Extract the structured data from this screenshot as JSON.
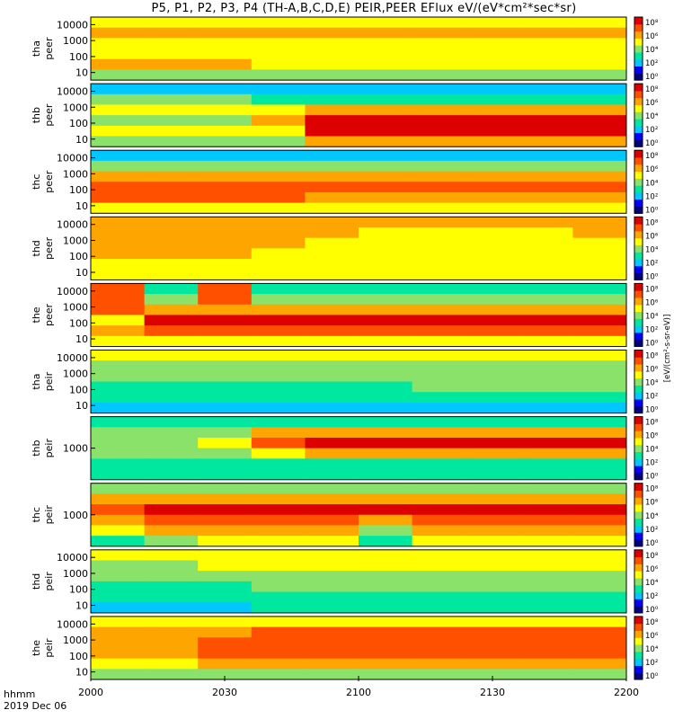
{
  "title": "P5, P1, P2, P3, P4 (TH-A,B,C,D,E) PEIR,PEER EFlux eV/(eV*cm²*sec*sr)",
  "time_footer": {
    "line1": "hhmm",
    "line2": "2019 Dec 06"
  },
  "colorbar_unit": "[eV/(cm²-s-sr-eV)]",
  "colors": {
    "background": "#ffffff",
    "axis": "#000000",
    "gap_band": "#ffffff"
  },
  "chart_data": {
    "type": "heatmap",
    "xlabel": "",
    "x_ticks": [
      "2000",
      "2030",
      "2100",
      "2130",
      "2200"
    ],
    "xlim": [
      "2000",
      "2200"
    ],
    "colormap": [
      "#000080",
      "#0000ff",
      "#00c8ff",
      "#00e8a0",
      "#8be26a",
      "#ffff00",
      "#ffa500",
      "#ff5000",
      "#dc0000"
    ],
    "panels": [
      {
        "name": "tha peer",
        "probe": "tha",
        "species": "peer",
        "y_scale": "log",
        "y_ticks": [
          "10000",
          "1000",
          "100",
          "10"
        ],
        "colorbar_ticks": [
          "10⁸",
          "10⁶",
          "10⁴",
          "10²",
          "10⁰"
        ],
        "levels": [
          [
            0.62,
            0.62,
            0.62,
            0.62,
            0.62,
            0.62,
            0.62,
            0.62,
            0.62,
            0.62
          ],
          [
            0.72,
            0.72,
            0.72,
            0.72,
            0.72,
            0.72,
            0.72,
            0.72,
            0.72,
            0.72
          ],
          [
            0.68,
            0.68,
            0.68,
            0.68,
            0.66,
            0.64,
            0.62,
            0.62,
            0.62,
            0.62
          ],
          [
            0.6,
            0.6,
            0.62,
            0.62,
            0.6,
            0.58,
            0.58,
            0.58,
            0.58,
            0.58
          ],
          [
            0.7,
            0.72,
            0.74,
            0.68,
            0.64,
            0.64,
            0.64,
            0.64,
            0.64,
            0.64
          ],
          [
            0.55,
            0.55,
            0.55,
            0.55,
            0.55,
            0.55,
            0.55,
            0.55,
            0.55,
            0.55
          ]
        ]
      },
      {
        "name": "thb peer",
        "probe": "thb",
        "species": "peer",
        "y_scale": "log",
        "y_ticks": [
          "10000",
          "1000",
          "100",
          "10"
        ],
        "colorbar_ticks": [
          "10⁸",
          "10⁶",
          "10⁴",
          "10²",
          "10⁰"
        ],
        "levels": [
          [
            0.3,
            0.3,
            0.3,
            0.3,
            0.3,
            0.3,
            0.3,
            0.3,
            0.3,
            0.3
          ],
          [
            0.45,
            0.45,
            0.45,
            0.42,
            0.38,
            0.38,
            0.38,
            0.38,
            0.38,
            0.38
          ],
          [
            0.6,
            0.6,
            0.58,
            0.62,
            0.7,
            0.7,
            0.7,
            0.7,
            0.7,
            0.7
          ],
          [
            0.55,
            0.55,
            0.55,
            0.8,
            0.95,
            0.95,
            0.95,
            0.95,
            0.95,
            0.95
          ],
          [
            0.58,
            0.58,
            0.58,
            0.68,
            0.95,
            0.95,
            0.95,
            0.95,
            0.95,
            0.95
          ],
          [
            0.5,
            0.5,
            0.5,
            0.55,
            0.8,
            0.8,
            0.8,
            0.8,
            0.8,
            0.8
          ]
        ]
      },
      {
        "name": "thc peer",
        "probe": "thc",
        "species": "peer",
        "y_scale": "log",
        "y_ticks": [
          "10000",
          "1000",
          "100",
          "10"
        ],
        "colorbar_ticks": [
          "10⁸",
          "10⁶",
          "10⁴",
          "10²",
          "10⁰"
        ],
        "levels": [
          [
            0.3,
            0.3,
            0.3,
            0.3,
            0.3,
            0.3,
            0.3,
            0.3,
            0.3,
            0.3
          ],
          [
            0.55,
            0.55,
            0.55,
            0.55,
            0.55,
            0.55,
            0.55,
            0.55,
            0.55,
            0.55
          ],
          [
            0.7,
            0.7,
            0.7,
            0.7,
            0.7,
            0.7,
            0.7,
            0.7,
            0.7,
            0.7
          ],
          [
            0.9,
            0.9,
            0.9,
            0.9,
            0.92,
            0.9,
            0.9,
            0.9,
            0.9,
            0.9
          ],
          [
            0.85,
            0.85,
            0.85,
            0.85,
            0.8,
            0.8,
            0.8,
            0.8,
            0.8,
            0.8
          ],
          [
            0.6,
            0.6,
            0.6,
            0.6,
            0.6,
            0.6,
            0.6,
            0.6,
            0.6,
            0.6
          ]
        ]
      },
      {
        "name": "thd peer",
        "probe": "thd",
        "species": "peer",
        "y_scale": "log",
        "y_ticks": [
          "10000",
          "1000",
          "100",
          "10"
        ],
        "colorbar_ticks": [
          "10⁸",
          "10⁶",
          "10⁴",
          "10²",
          "10⁰"
        ],
        "levels": [
          [
            0.7,
            0.7,
            0.7,
            0.7,
            0.7,
            0.7,
            0.7,
            0.7,
            0.7,
            0.7
          ],
          [
            0.8,
            0.8,
            0.78,
            0.74,
            0.7,
            0.68,
            0.66,
            0.66,
            0.68,
            0.7
          ],
          [
            0.78,
            0.78,
            0.74,
            0.7,
            0.66,
            0.62,
            0.6,
            0.6,
            0.64,
            0.68
          ],
          [
            0.72,
            0.72,
            0.7,
            0.66,
            0.62,
            0.6,
            0.6,
            0.6,
            0.62,
            0.66
          ],
          [
            0.66,
            0.66,
            0.64,
            0.62,
            0.6,
            0.6,
            0.6,
            0.6,
            0.6,
            0.62
          ],
          [
            0.58,
            0.58,
            0.58,
            0.58,
            0.58,
            0.58,
            0.58,
            0.58,
            0.58,
            0.58
          ]
        ]
      },
      {
        "name": "the peer",
        "probe": "the",
        "species": "peer",
        "y_scale": "log",
        "y_ticks": [
          "10000",
          "1000",
          "100",
          "10"
        ],
        "colorbar_ticks": [
          "10⁸",
          "10⁶",
          "10⁴",
          "10²",
          "10⁰"
        ],
        "levels": [
          [
            0.9,
            0.4,
            0.88,
            0.32,
            0.32,
            0.32,
            0.32,
            0.32,
            0.32,
            0.32
          ],
          [
            0.92,
            0.55,
            0.9,
            0.45,
            0.45,
            0.48,
            0.45,
            0.45,
            0.45,
            0.45
          ],
          [
            0.92,
            0.7,
            0.8,
            0.8,
            0.8,
            0.8,
            0.8,
            0.8,
            0.8,
            0.8
          ],
          [
            0.6,
            0.95,
            0.95,
            0.95,
            0.95,
            0.95,
            0.95,
            0.95,
            0.95,
            0.95
          ],
          [
            0.7,
            0.88,
            0.88,
            0.88,
            0.88,
            0.88,
            0.88,
            0.88,
            0.88,
            0.88
          ],
          [
            0.6,
            0.6,
            0.62,
            0.62,
            0.62,
            0.62,
            0.62,
            0.62,
            0.62,
            0.62
          ]
        ]
      },
      {
        "name": "tha peir",
        "probe": "tha",
        "species": "peir",
        "y_scale": "log",
        "y_ticks": [
          "10000",
          "1000",
          "100",
          "10"
        ],
        "colorbar_ticks": [
          "10⁸",
          "10⁶",
          "10⁴",
          "10²",
          "10⁰"
        ],
        "levels": [
          [
            0.6,
            0.6,
            0.6,
            0.6,
            0.6,
            0.6,
            0.6,
            0.6,
            0.6,
            0.6
          ],
          [
            0.55,
            0.55,
            0.55,
            0.55,
            0.55,
            0.55,
            0.55,
            0.55,
            0.55,
            0.55
          ],
          [
            0.48,
            0.48,
            0.48,
            0.48,
            0.48,
            0.48,
            0.5,
            0.5,
            0.5,
            0.5
          ],
          [
            0.42,
            0.42,
            0.42,
            0.42,
            0.42,
            0.42,
            0.44,
            0.44,
            0.44,
            0.44
          ],
          [
            0.36,
            0.36,
            0.36,
            0.36,
            0.36,
            0.36,
            0.36,
            0.36,
            0.36,
            0.36
          ],
          [
            0.3,
            0.3,
            0.3,
            0.3,
            0.3,
            0.3,
            0.3,
            0.3,
            0.3,
            0.3
          ]
        ]
      },
      {
        "name": "thb peir",
        "probe": "thb",
        "species": "peir",
        "y_scale": "log",
        "y_ticks": [
          "1000"
        ],
        "colorbar_ticks": [
          "10⁸",
          "10⁶",
          "10⁴",
          "10²",
          "10⁰"
        ],
        "levels": [
          [
            0.42,
            0.42,
            0.42,
            0.42,
            0.42,
            0.42,
            0.42,
            0.42,
            0.42,
            0.42
          ],
          [
            0.5,
            0.5,
            0.55,
            0.7,
            0.72,
            0.72,
            0.72,
            0.72,
            0.72,
            0.72
          ],
          [
            0.55,
            0.55,
            0.6,
            0.92,
            0.95,
            0.95,
            0.95,
            0.95,
            0.95,
            0.95
          ],
          [
            0.5,
            0.5,
            0.5,
            0.65,
            0.75,
            0.75,
            0.75,
            0.75,
            0.75,
            0.75
          ],
          [
            0.4,
            0.4,
            0.4,
            0.4,
            0.4,
            0.4,
            0.4,
            0.4,
            0.4,
            0.4
          ],
          [
            0.35,
            0.35,
            0.35,
            0.35,
            0.35,
            0.35,
            0.35,
            0.35,
            0.35,
            0.35
          ]
        ]
      },
      {
        "name": "thc peir",
        "probe": "thc",
        "species": "peir",
        "y_scale": "log",
        "y_ticks": [
          "1000"
        ],
        "colorbar_ticks": [
          "10⁸",
          "10⁶",
          "10⁴",
          "10²",
          "10⁰"
        ],
        "levels": [
          [
            0.5,
            0.5,
            0.55,
            0.55,
            0.55,
            0.55,
            0.55,
            0.55,
            0.55,
            0.55
          ],
          [
            0.72,
            0.78,
            0.8,
            0.8,
            0.8,
            0.78,
            0.8,
            0.8,
            0.8,
            0.8
          ],
          [
            0.88,
            0.95,
            0.95,
            0.95,
            0.95,
            0.95,
            0.95,
            0.95,
            0.95,
            0.95
          ],
          [
            0.8,
            0.92,
            0.92,
            0.92,
            0.92,
            0.7,
            0.92,
            0.92,
            0.92,
            0.92
          ],
          [
            0.6,
            0.75,
            0.78,
            0.78,
            0.78,
            0.45,
            0.78,
            0.78,
            0.78,
            0.78
          ],
          [
            0.42,
            0.55,
            0.6,
            0.6,
            0.6,
            0.4,
            0.6,
            0.6,
            0.6,
            0.6
          ]
        ]
      },
      {
        "name": "thd peir",
        "probe": "thd",
        "species": "peir",
        "y_scale": "log",
        "y_ticks": [
          "10000",
          "1000",
          "100",
          "10"
        ],
        "colorbar_ticks": [
          "10⁸",
          "10⁶",
          "10⁴",
          "10²",
          "10⁰"
        ],
        "levels": [
          [
            0.62,
            0.62,
            0.62,
            0.62,
            0.62,
            0.62,
            0.62,
            0.62,
            0.62,
            0.62
          ],
          [
            0.55,
            0.55,
            0.58,
            0.6,
            0.6,
            0.6,
            0.6,
            0.6,
            0.6,
            0.6
          ],
          [
            0.48,
            0.48,
            0.5,
            0.52,
            0.54,
            0.56,
            0.56,
            0.56,
            0.56,
            0.56
          ],
          [
            0.4,
            0.4,
            0.42,
            0.44,
            0.46,
            0.48,
            0.48,
            0.48,
            0.48,
            0.48
          ],
          [
            0.34,
            0.34,
            0.36,
            0.38,
            0.4,
            0.4,
            0.4,
            0.4,
            0.4,
            0.4
          ],
          [
            0.3,
            0.3,
            0.3,
            0.32,
            0.32,
            0.32,
            0.32,
            0.32,
            0.32,
            0.32
          ]
        ]
      },
      {
        "name": "the peir",
        "probe": "the",
        "species": "peir",
        "y_scale": "log",
        "y_ticks": [
          "10000",
          "1000",
          "100",
          "10"
        ],
        "colorbar_ticks": [
          "10⁸",
          "10⁶",
          "10⁴",
          "10²",
          "10⁰"
        ],
        "levels": [
          [
            0.62,
            0.62,
            0.66,
            0.66,
            0.66,
            0.66,
            0.66,
            0.66,
            0.66,
            0.66
          ],
          [
            0.7,
            0.72,
            0.8,
            0.82,
            0.82,
            0.82,
            0.82,
            0.82,
            0.82,
            0.82
          ],
          [
            0.72,
            0.72,
            0.86,
            0.88,
            0.88,
            0.88,
            0.88,
            0.88,
            0.88,
            0.88
          ],
          [
            0.7,
            0.7,
            0.88,
            0.9,
            0.9,
            0.9,
            0.9,
            0.9,
            0.9,
            0.9
          ],
          [
            0.62,
            0.62,
            0.7,
            0.72,
            0.72,
            0.72,
            0.72,
            0.72,
            0.72,
            0.72
          ],
          [
            0.5,
            0.5,
            0.5,
            0.52,
            0.52,
            0.52,
            0.52,
            0.52,
            0.52,
            0.52
          ]
        ]
      }
    ]
  }
}
